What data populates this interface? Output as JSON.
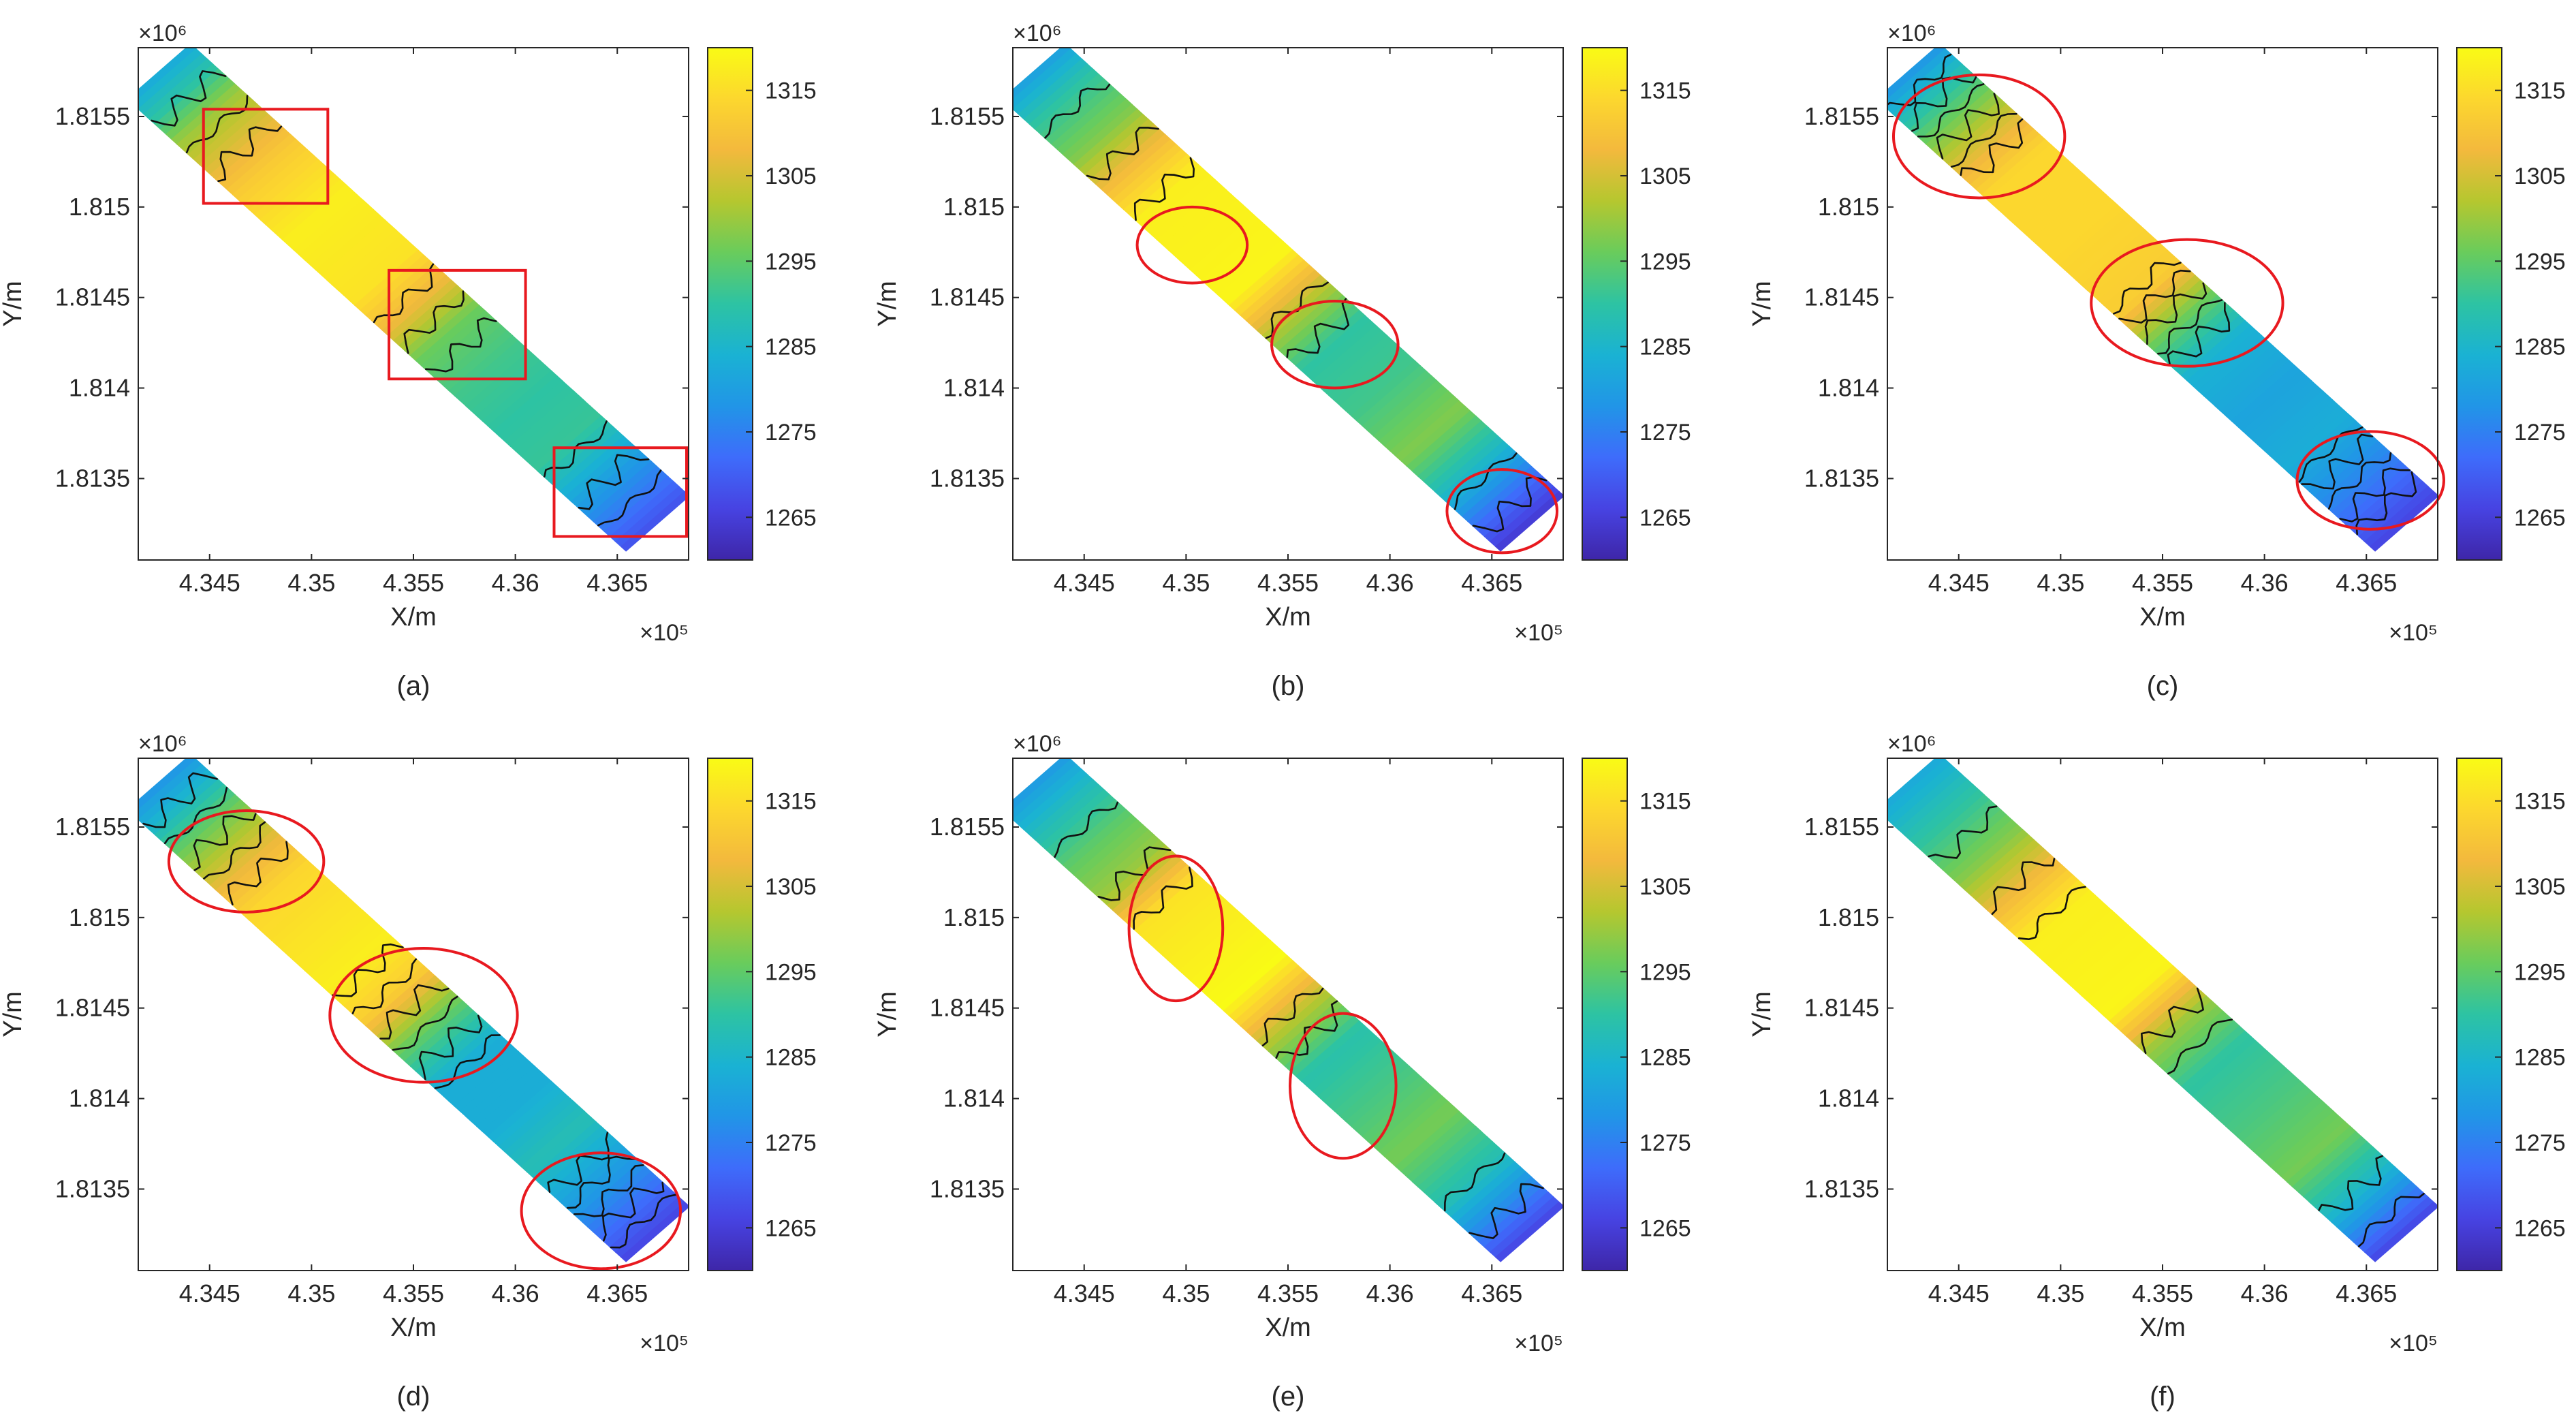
{
  "chart_data": {
    "type": "heatmap",
    "description_units": {
      "x": "m",
      "y": "m",
      "value": "elevation"
    },
    "shared": {
      "xlabel": "X/m",
      "ylabel": "Y/m",
      "x_multiplier_label": "×10⁵",
      "y_multiplier_label": "×10⁶",
      "x_ticks": [
        434500,
        435000,
        435500,
        436000,
        436500
      ],
      "x_tick_labels": [
        "4.345",
        "4.35",
        "4.355",
        "4.36",
        "4.365"
      ],
      "y_ticks": [
        1815500,
        1815000,
        1814500,
        1814000,
        1813500
      ],
      "y_tick_labels": [
        "1.8155",
        "1.815",
        "1.8145",
        "1.814",
        "1.8135"
      ],
      "xlim": [
        434150,
        436850
      ],
      "ylim": [
        1813050,
        1815880
      ],
      "colorbar": {
        "range": [
          1260,
          1320
        ],
        "ticks": [
          1315,
          1305,
          1295,
          1285,
          1275,
          1265
        ],
        "tick_labels": [
          "1315",
          "1305",
          "1295",
          "1285",
          "1275",
          "1265"
        ],
        "colormap": [
          "#3e26a8",
          "#4743e2",
          "#3e6cfb",
          "#2195e7",
          "#1ab2d3",
          "#2dc3a3",
          "#69cc5c",
          "#b5c72f",
          "#f3b93d",
          "#fcd72e",
          "#f9fb15"
        ]
      }
    },
    "strip": {
      "start": [
        434250,
        1815750
      ],
      "end": [
        436700,
        1813250
      ],
      "half_width_m": 220
    },
    "panels": [
      {
        "label": "(a)",
        "profile": [
          {
            "t": 0,
            "v": 1282
          },
          {
            "t": 0.05,
            "v": 1290
          },
          {
            "t": 0.1,
            "v": 1300
          },
          {
            "t": 0.16,
            "v": 1306
          },
          {
            "t": 0.22,
            "v": 1312
          },
          {
            "t": 0.32,
            "v": 1318
          },
          {
            "t": 0.45,
            "v": 1316
          },
          {
            "t": 0.52,
            "v": 1307
          },
          {
            "t": 0.58,
            "v": 1296
          },
          {
            "t": 0.66,
            "v": 1292
          },
          {
            "t": 0.74,
            "v": 1290
          },
          {
            "t": 0.82,
            "v": 1291
          },
          {
            "t": 0.9,
            "v": 1280
          },
          {
            "t": 1,
            "v": 1268
          }
        ],
        "contour_positions": [
          0.06,
          0.12,
          0.17,
          0.5,
          0.55,
          0.61,
          0.84,
          0.9,
          0.95
        ],
        "annotations": [
          {
            "shape": "rect",
            "x": [
              434470,
              435080
            ],
            "y": [
              1815020,
              1815540
            ]
          },
          {
            "shape": "rect",
            "x": [
              435380,
              436050
            ],
            "y": [
              1814050,
              1814650
            ]
          },
          {
            "shape": "rect",
            "x": [
              436190,
              436840
            ],
            "y": [
              1813180,
              1813670
            ]
          }
        ]
      },
      {
        "label": "(b)",
        "profile": [
          {
            "t": 0,
            "v": 1280
          },
          {
            "t": 0.06,
            "v": 1290
          },
          {
            "t": 0.14,
            "v": 1298
          },
          {
            "t": 0.2,
            "v": 1308
          },
          {
            "t": 0.27,
            "v": 1318
          },
          {
            "t": 0.45,
            "v": 1319
          },
          {
            "t": 0.53,
            "v": 1302
          },
          {
            "t": 0.6,
            "v": 1290
          },
          {
            "t": 0.7,
            "v": 1292
          },
          {
            "t": 0.8,
            "v": 1298
          },
          {
            "t": 0.88,
            "v": 1286
          },
          {
            "t": 0.95,
            "v": 1272
          },
          {
            "t": 1,
            "v": 1264
          }
        ],
        "contour_positions": [
          0.08,
          0.18,
          0.26,
          0.52,
          0.58,
          0.9,
          0.96
        ],
        "annotations": [
          {
            "shape": "ellipse",
            "cx": 435030,
            "cy": 1814790,
            "rx": 270,
            "ry": 210
          },
          {
            "shape": "ellipse",
            "cx": 435730,
            "cy": 1814240,
            "rx": 310,
            "ry": 240
          },
          {
            "shape": "ellipse",
            "cx": 436550,
            "cy": 1813320,
            "rx": 270,
            "ry": 230
          }
        ]
      },
      {
        "label": "(c)",
        "profile": [
          {
            "t": 0,
            "v": 1278
          },
          {
            "t": 0.04,
            "v": 1286
          },
          {
            "t": 0.09,
            "v": 1295
          },
          {
            "t": 0.15,
            "v": 1305
          },
          {
            "t": 0.22,
            "v": 1314
          },
          {
            "t": 0.35,
            "v": 1314
          },
          {
            "t": 0.48,
            "v": 1312
          },
          {
            "t": 0.55,
            "v": 1296
          },
          {
            "t": 0.62,
            "v": 1284
          },
          {
            "t": 0.72,
            "v": 1281
          },
          {
            "t": 0.82,
            "v": 1283
          },
          {
            "t": 0.9,
            "v": 1276
          },
          {
            "t": 1,
            "v": 1266
          }
        ],
        "contour_positions": [
          0.03,
          0.06,
          0.09,
          0.12,
          0.15,
          0.18,
          0.47,
          0.5,
          0.53,
          0.56,
          0.59,
          0.84,
          0.87,
          0.9,
          0.93,
          0.96
        ],
        "annotations": [
          {
            "shape": "ellipse",
            "cx": 434600,
            "cy": 1815390,
            "rx": 420,
            "ry": 340
          },
          {
            "shape": "ellipse",
            "cx": 435620,
            "cy": 1814470,
            "rx": 470,
            "ry": 350
          },
          {
            "shape": "ellipse",
            "cx": 436520,
            "cy": 1813490,
            "rx": 360,
            "ry": 270
          }
        ]
      },
      {
        "label": "(d)",
        "profile": [
          {
            "t": 0,
            "v": 1278
          },
          {
            "t": 0.05,
            "v": 1286
          },
          {
            "t": 0.1,
            "v": 1296
          },
          {
            "t": 0.17,
            "v": 1306
          },
          {
            "t": 0.24,
            "v": 1314
          },
          {
            "t": 0.4,
            "v": 1318
          },
          {
            "t": 0.47,
            "v": 1312
          },
          {
            "t": 0.54,
            "v": 1296
          },
          {
            "t": 0.62,
            "v": 1283
          },
          {
            "t": 0.72,
            "v": 1283
          },
          {
            "t": 0.8,
            "v": 1288
          },
          {
            "t": 0.9,
            "v": 1278
          },
          {
            "t": 1,
            "v": 1266
          }
        ],
        "contour_positions": [
          0.04,
          0.08,
          0.12,
          0.16,
          0.2,
          0.42,
          0.46,
          0.5,
          0.54,
          0.58,
          0.62,
          0.85,
          0.88,
          0.91,
          0.94,
          0.97
        ],
        "annotations": [
          {
            "shape": "ellipse",
            "cx": 434680,
            "cy": 1815310,
            "rx": 380,
            "ry": 280
          },
          {
            "shape": "ellipse",
            "cx": 435550,
            "cy": 1814460,
            "rx": 460,
            "ry": 370
          },
          {
            "shape": "ellipse",
            "cx": 436420,
            "cy": 1813380,
            "rx": 390,
            "ry": 320
          }
        ]
      },
      {
        "label": "(e)",
        "profile": [
          {
            "t": 0,
            "v": 1279
          },
          {
            "t": 0.06,
            "v": 1287
          },
          {
            "t": 0.13,
            "v": 1295
          },
          {
            "t": 0.2,
            "v": 1300
          },
          {
            "t": 0.27,
            "v": 1316
          },
          {
            "t": 0.44,
            "v": 1320
          },
          {
            "t": 0.52,
            "v": 1303
          },
          {
            "t": 0.6,
            "v": 1289
          },
          {
            "t": 0.7,
            "v": 1293
          },
          {
            "t": 0.78,
            "v": 1297
          },
          {
            "t": 0.88,
            "v": 1288
          },
          {
            "t": 0.95,
            "v": 1275
          },
          {
            "t": 1,
            "v": 1266
          }
        ],
        "contour_positions": [
          0.1,
          0.2,
          0.26,
          0.51,
          0.56,
          0.88,
          0.95
        ],
        "annotations": [
          {
            "shape": "ellipse",
            "cx": 434950,
            "cy": 1814940,
            "rx": 230,
            "ry": 400
          },
          {
            "shape": "ellipse",
            "cx": 435770,
            "cy": 1814070,
            "rx": 260,
            "ry": 400
          }
        ]
      },
      {
        "label": "(f)",
        "profile": [
          {
            "t": 0,
            "v": 1282
          },
          {
            "t": 0.07,
            "v": 1289
          },
          {
            "t": 0.16,
            "v": 1298
          },
          {
            "t": 0.23,
            "v": 1308
          },
          {
            "t": 0.3,
            "v": 1318
          },
          {
            "t": 0.46,
            "v": 1319
          },
          {
            "t": 0.54,
            "v": 1300
          },
          {
            "t": 0.62,
            "v": 1290
          },
          {
            "t": 0.72,
            "v": 1293
          },
          {
            "t": 0.82,
            "v": 1297
          },
          {
            "t": 0.9,
            "v": 1286
          },
          {
            "t": 0.96,
            "v": 1274
          },
          {
            "t": 1,
            "v": 1266
          }
        ],
        "contour_positions": [
          0.12,
          0.22,
          0.29,
          0.53,
          0.58,
          0.9,
          0.96
        ],
        "annotations": []
      }
    ]
  }
}
